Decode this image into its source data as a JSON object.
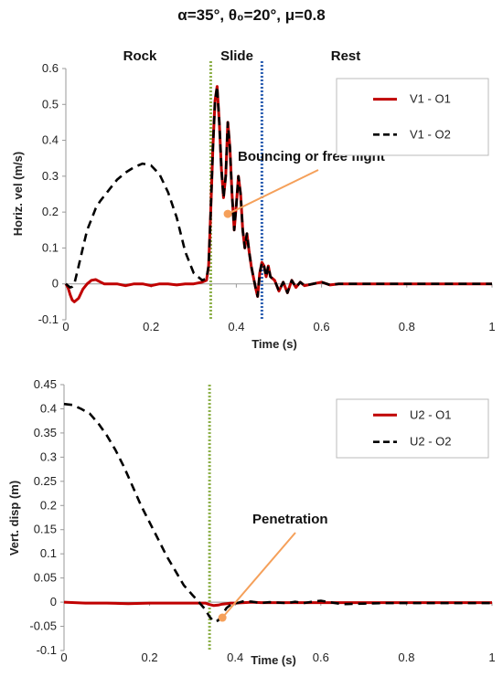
{
  "figure_title": "α=35°, θ₀=20°, μ=0.8",
  "colors": {
    "o1": "#c00000",
    "o2": "#000000",
    "slide_line": "#8db04a",
    "rest_line": "#2a5db0",
    "annotation": "#f5a05a",
    "axis": "#999999"
  },
  "chart_data": [
    {
      "type": "line",
      "phase_labels": [
        "Rock",
        "Slide",
        "Rest"
      ],
      "vlines": [
        {
          "x": 0.34,
          "style": "dotted",
          "color": "#8db04a"
        },
        {
          "x": 0.46,
          "style": "dotted",
          "color": "#2a5db0"
        }
      ],
      "xlabel": "Time (s)",
      "ylabel": "Horiz. vel (m/s)",
      "xlim": [
        0,
        1
      ],
      "ylim": [
        -0.1,
        0.6
      ],
      "x_ticks": [
        "0",
        "0.2",
        "0.4",
        "0.6",
        "0.8",
        "1"
      ],
      "y_ticks": [
        "-0.1",
        "0",
        "0.1",
        "0.2",
        "0.3",
        "0.4",
        "0.5",
        "0.6"
      ],
      "legend_position": "top-right",
      "annotation": {
        "text": "Bouncing  or free flight",
        "point": [
          0.38,
          0.195
        ]
      },
      "series": [
        {
          "name": "V1 - O1",
          "style": "solid",
          "color": "#c00000",
          "x": [
            0,
            0.005,
            0.01,
            0.015,
            0.02,
            0.03,
            0.04,
            0.05,
            0.06,
            0.07,
            0.08,
            0.09,
            0.1,
            0.12,
            0.14,
            0.16,
            0.18,
            0.2,
            0.22,
            0.24,
            0.26,
            0.28,
            0.3,
            0.32,
            0.33,
            0.335,
            0.34,
            0.345,
            0.35,
            0.355,
            0.36,
            0.365,
            0.37,
            0.375,
            0.38,
            0.385,
            0.39,
            0.395,
            0.4,
            0.405,
            0.41,
            0.415,
            0.42,
            0.425,
            0.43,
            0.435,
            0.44,
            0.445,
            0.45,
            0.455,
            0.46,
            0.465,
            0.47,
            0.475,
            0.48,
            0.49,
            0.5,
            0.51,
            0.52,
            0.53,
            0.54,
            0.55,
            0.56,
            0.58,
            0.6,
            0.62,
            0.64,
            0.66,
            0.7,
            0.75,
            0.8,
            0.85,
            0.9,
            0.95,
            1
          ],
          "y": [
            0,
            -0.01,
            -0.03,
            -0.045,
            -0.05,
            -0.04,
            -0.015,
            0,
            0.01,
            0.012,
            0.006,
            0,
            0,
            0,
            -0.005,
            0,
            0,
            -0.005,
            0,
            0,
            -0.003,
            0,
            0,
            0.005,
            0.01,
            0.05,
            0.2,
            0.38,
            0.51,
            0.55,
            0.45,
            0.32,
            0.24,
            0.3,
            0.45,
            0.38,
            0.25,
            0.15,
            0.22,
            0.3,
            0.25,
            0.15,
            0.1,
            0.14,
            0.09,
            0.05,
            0.02,
            -0.01,
            -0.035,
            0.03,
            0.06,
            0.05,
            0.02,
            0.05,
            0.02,
            0.01,
            -0.02,
            0.005,
            -0.025,
            0.01,
            -0.01,
            0.005,
            -0.005,
            0,
            0.005,
            -0.003,
            0,
            0,
            0,
            0,
            0,
            0,
            0,
            0,
            0
          ]
        },
        {
          "name": "V1 - O2",
          "style": "dashed",
          "color": "#000000",
          "x": [
            0,
            0.005,
            0.01,
            0.015,
            0.02,
            0.03,
            0.04,
            0.05,
            0.06,
            0.07,
            0.08,
            0.09,
            0.1,
            0.12,
            0.14,
            0.16,
            0.18,
            0.2,
            0.22,
            0.24,
            0.26,
            0.28,
            0.3,
            0.32,
            0.33,
            0.335,
            0.34,
            0.345,
            0.35,
            0.355,
            0.36,
            0.365,
            0.37,
            0.375,
            0.38,
            0.385,
            0.39,
            0.395,
            0.4,
            0.405,
            0.41,
            0.415,
            0.42,
            0.425,
            0.43,
            0.435,
            0.44,
            0.445,
            0.45,
            0.455,
            0.46,
            0.465,
            0.47,
            0.475,
            0.48,
            0.49,
            0.5,
            0.51,
            0.52,
            0.53,
            0.54,
            0.55,
            0.56,
            0.58,
            0.6,
            0.62,
            0.64,
            0.66,
            0.7,
            0.75,
            0.8,
            0.85,
            0.9,
            0.95,
            1
          ],
          "y": [
            0,
            -0.005,
            -0.01,
            -0.008,
            0,
            0.05,
            0.1,
            0.15,
            0.18,
            0.21,
            0.23,
            0.245,
            0.26,
            0.29,
            0.31,
            0.325,
            0.335,
            0.33,
            0.305,
            0.255,
            0.185,
            0.09,
            0.03,
            0.01,
            0.015,
            0.05,
            0.2,
            0.38,
            0.51,
            0.55,
            0.45,
            0.32,
            0.24,
            0.3,
            0.45,
            0.38,
            0.25,
            0.15,
            0.22,
            0.3,
            0.25,
            0.15,
            0.1,
            0.14,
            0.09,
            0.05,
            0.02,
            -0.01,
            -0.035,
            0.03,
            0.06,
            0.05,
            0.02,
            0.05,
            0.02,
            0.01,
            -0.02,
            0.005,
            -0.025,
            0.01,
            -0.01,
            0.005,
            -0.005,
            0,
            0.005,
            -0.003,
            0,
            0,
            0,
            0,
            0,
            0,
            0,
            0,
            0
          ]
        }
      ]
    },
    {
      "type": "line",
      "vlines": [
        {
          "x": 0.34,
          "style": "dotted",
          "color": "#8db04a"
        }
      ],
      "xlabel": "Time (s)",
      "ylabel": "Vert. disp (m)",
      "xlim": [
        0,
        1
      ],
      "ylim": [
        -0.1,
        0.45
      ],
      "x_ticks": [
        "0",
        "0.2",
        "0.4",
        "0.6",
        "0.8",
        "1"
      ],
      "y_ticks": [
        "-0.1",
        "-0.05",
        "0",
        "0.05",
        "0.1",
        "0.15",
        "0.2",
        "0.25",
        "0.3",
        "0.35",
        "0.4",
        "0.45"
      ],
      "legend_position": "top-right",
      "annotation": {
        "text": "Penetration",
        "point": [
          0.37,
          -0.032
        ]
      },
      "series": [
        {
          "name": "U2 - O1",
          "style": "solid",
          "color": "#c00000",
          "x": [
            0,
            0.05,
            0.1,
            0.15,
            0.2,
            0.25,
            0.3,
            0.33,
            0.34,
            0.35,
            0.36,
            0.37,
            0.38,
            0.39,
            0.4,
            0.42,
            0.44,
            0.46,
            0.5,
            0.55,
            0.6,
            0.7,
            0.8,
            0.9,
            1
          ],
          "y": [
            0,
            -0.002,
            -0.002,
            -0.003,
            -0.002,
            -0.002,
            -0.002,
            -0.002,
            -0.005,
            -0.007,
            -0.006,
            -0.004,
            -0.003,
            -0.002,
            -0.002,
            -0.001,
            0,
            -0.001,
            -0.001,
            -0.001,
            -0.001,
            -0.001,
            -0.001,
            -0.001,
            -0.001
          ]
        },
        {
          "name": "U2 - O2",
          "style": "dashed",
          "color": "#000000",
          "x": [
            0,
            0.02,
            0.04,
            0.06,
            0.08,
            0.1,
            0.12,
            0.14,
            0.16,
            0.18,
            0.2,
            0.22,
            0.24,
            0.26,
            0.28,
            0.3,
            0.31,
            0.32,
            0.33,
            0.34,
            0.35,
            0.36,
            0.37,
            0.38,
            0.39,
            0.4,
            0.42,
            0.44,
            0.46,
            0.48,
            0.5,
            0.52,
            0.54,
            0.56,
            0.58,
            0.6,
            0.62,
            0.65,
            0.7,
            0.75,
            0.8,
            0.85,
            0.9,
            0.95,
            1
          ],
          "y": [
            0.41,
            0.408,
            0.4,
            0.39,
            0.37,
            0.345,
            0.315,
            0.28,
            0.24,
            0.2,
            0.165,
            0.13,
            0.095,
            0.065,
            0.035,
            0.015,
            0.005,
            -0.005,
            -0.015,
            -0.03,
            -0.04,
            -0.038,
            -0.025,
            -0.012,
            -0.005,
            -0.003,
            0.002,
            0.001,
            -0.002,
            0,
            -0.001,
            -0.002,
            0.001,
            -0.002,
            0.001,
            0.003,
            0,
            -0.004,
            -0.003,
            -0.002,
            -0.002,
            -0.002,
            -0.002,
            -0.002,
            -0.002
          ]
        }
      ]
    }
  ]
}
